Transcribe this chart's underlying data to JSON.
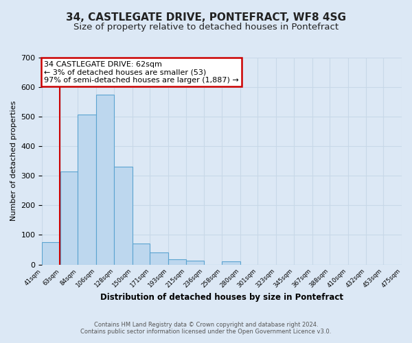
{
  "title": "34, CASTLEGATE DRIVE, PONTEFRACT, WF8 4SG",
  "subtitle": "Size of property relative to detached houses in Pontefract",
  "bar_values": [
    75,
    315,
    507,
    575,
    330,
    70,
    40,
    18,
    14,
    0,
    10,
    0,
    0,
    0,
    0,
    0,
    0,
    0,
    0,
    0
  ],
  "bin_edges": [
    41,
    63,
    84,
    106,
    128,
    150,
    171,
    193,
    215,
    236,
    258,
    280,
    301,
    323,
    345,
    367,
    388,
    410,
    432,
    453,
    475
  ],
  "bin_labels": [
    "41sqm",
    "63sqm",
    "84sqm",
    "106sqm",
    "128sqm",
    "150sqm",
    "171sqm",
    "193sqm",
    "215sqm",
    "236sqm",
    "258sqm",
    "280sqm",
    "301sqm",
    "323sqm",
    "345sqm",
    "367sqm",
    "388sqm",
    "410sqm",
    "432sqm",
    "453sqm",
    "475sqm"
  ],
  "ylim": [
    0,
    700
  ],
  "yticks": [
    0,
    100,
    200,
    300,
    400,
    500,
    600,
    700
  ],
  "ylabel": "Number of detached properties",
  "xlabel": "Distribution of detached houses by size in Pontefract",
  "bar_color": "#bdd7ee",
  "bar_edge_color": "#5ba3d0",
  "property_line_x": 62,
  "annotation_line1": "34 CASTLEGATE DRIVE: 62sqm",
  "annotation_line2": "← 3% of detached houses are smaller (53)",
  "annotation_line3": "97% of semi-detached houses are larger (1,887) →",
  "annotation_box_color": "#ffffff",
  "annotation_box_edge": "#cc0000",
  "vline_color": "#cc0000",
  "grid_color": "#c8d8e8",
  "footer_line1": "Contains HM Land Registry data © Crown copyright and database right 2024.",
  "footer_line2": "Contains public sector information licensed under the Open Government Licence v3.0.",
  "background_color": "#dce8f5",
  "title_fontsize": 11,
  "subtitle_fontsize": 9.5
}
